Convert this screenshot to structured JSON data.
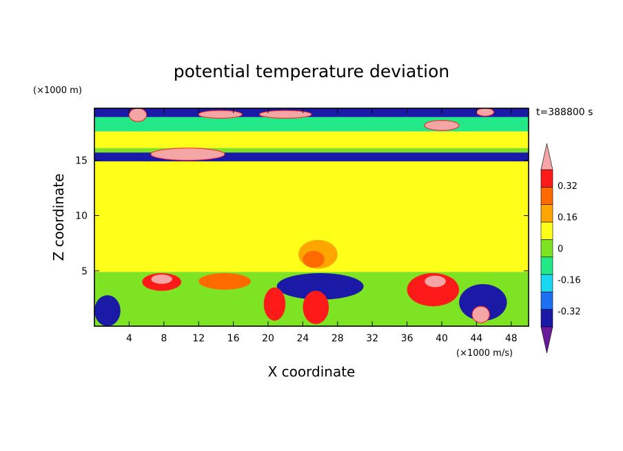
{
  "chart_data": {
    "type": "heatmap",
    "title": "potential temperature deviation",
    "xlabel": "X coordinate",
    "ylabel": "Z coordinate",
    "x_unit": "(×1000 m/s)",
    "y_unit": "(×1000 m)",
    "time_label": "t=388800 s",
    "xlim": [
      0,
      50
    ],
    "ylim": [
      0,
      19.7
    ],
    "x_ticks": [
      4,
      8,
      12,
      16,
      20,
      24,
      28,
      32,
      36,
      40,
      44,
      48
    ],
    "y_ticks": [
      5,
      10,
      15
    ],
    "colorbar": {
      "levels": [
        -0.4,
        -0.32,
        -0.24,
        -0.16,
        -0.08,
        0,
        0.08,
        0.16,
        0.24,
        0.32,
        0.4
      ],
      "labels": [
        "0.32",
        "0.16",
        "0",
        "-0.16",
        "-0.32"
      ],
      "label_values": [
        0.32,
        0.16,
        0,
        -0.16,
        -0.32
      ],
      "colors": [
        "#6a1b9a",
        "#1a1aa6",
        "#1f6ff2",
        "#19d7f0",
        "#23e887",
        "#7de323",
        "#ffff1a",
        "#ffa500",
        "#ff6a00",
        "#ff1a1a",
        "#f4a5a5"
      ],
      "extend": "both"
    },
    "features": [
      {
        "name": "upper-band",
        "kind": "band",
        "z": [
          18.9,
          19.7
        ],
        "value": -0.36
      },
      {
        "name": "upper-band",
        "kind": "band",
        "z": [
          17.6,
          18.9
        ],
        "value": -0.12
      },
      {
        "name": "upper-band",
        "kind": "band",
        "z": [
          16.1,
          17.6
        ],
        "value": 0.04
      },
      {
        "name": "upper-band",
        "kind": "band",
        "z": [
          15.7,
          16.1
        ],
        "value": -0.04
      },
      {
        "name": "tropopause-band",
        "kind": "band",
        "z": [
          14.9,
          15.7
        ],
        "value": -0.36
      },
      {
        "name": "mid-band",
        "kind": "band",
        "z": [
          4.9,
          14.9
        ],
        "value": 0.04
      },
      {
        "name": "boundary-layer",
        "kind": "band",
        "z": [
          0,
          4.9
        ],
        "value": -0.04
      },
      {
        "name": "warm-patch",
        "kind": "patch",
        "x": [
          6.5,
          15
        ],
        "z": [
          15.0,
          16.1
        ],
        "value": 0.45
      },
      {
        "name": "warm-patch",
        "kind": "patch",
        "x": [
          4,
          6
        ],
        "z": [
          18.5,
          19.7
        ],
        "value": 0.45
      },
      {
        "name": "warm-patch",
        "kind": "patch",
        "x": [
          12,
          17
        ],
        "z": [
          18.8,
          19.5
        ],
        "value": 0.45
      },
      {
        "name": "warm-patch",
        "kind": "patch",
        "x": [
          19,
          25
        ],
        "z": [
          18.8,
          19.5
        ],
        "value": 0.45
      },
      {
        "name": "warm-patch",
        "kind": "patch",
        "x": [
          38,
          42
        ],
        "z": [
          17.7,
          18.6
        ],
        "value": 0.45
      },
      {
        "name": "warm-patch",
        "kind": "patch",
        "x": [
          44,
          46
        ],
        "z": [
          19,
          19.7
        ],
        "value": 0.45
      },
      {
        "name": "warm-patch",
        "kind": "patch",
        "x": [
          23.5,
          28
        ],
        "z": [
          5.2,
          7.8
        ],
        "value": 0.12
      },
      {
        "name": "warm-patch",
        "kind": "patch",
        "x": [
          24,
          26.5
        ],
        "z": [
          5.3,
          6.8
        ],
        "value": 0.2
      },
      {
        "name": "cold-patch",
        "kind": "patch",
        "x": [
          0,
          3
        ],
        "z": [
          0,
          2.8
        ],
        "value": -0.4
      },
      {
        "name": "cold-patch",
        "kind": "patch",
        "x": [
          21,
          31
        ],
        "z": [
          2.4,
          4.8
        ],
        "value": -0.36
      },
      {
        "name": "cold-patch",
        "kind": "patch",
        "x": [
          42,
          47.5
        ],
        "z": [
          0.5,
          3.8
        ],
        "value": -0.36
      },
      {
        "name": "warm-patch",
        "kind": "patch",
        "x": [
          5.5,
          10
        ],
        "z": [
          3.2,
          4.8
        ],
        "value": 0.28
      },
      {
        "name": "warm-patch",
        "kind": "patch",
        "x": [
          6.5,
          9
        ],
        "z": [
          3.8,
          4.7
        ],
        "value": 0.45
      },
      {
        "name": "warm-patch",
        "kind": "patch",
        "x": [
          12,
          18
        ],
        "z": [
          3.3,
          4.8
        ],
        "value": 0.2
      },
      {
        "name": "warm-patch",
        "kind": "patch",
        "x": [
          19.5,
          22
        ],
        "z": [
          0.5,
          3.5
        ],
        "value": 0.28
      },
      {
        "name": "warm-patch",
        "kind": "patch",
        "x": [
          24,
          27
        ],
        "z": [
          0.2,
          3.2
        ],
        "value": 0.28
      },
      {
        "name": "warm-patch",
        "kind": "patch",
        "x": [
          36,
          42
        ],
        "z": [
          1.8,
          4.8
        ],
        "value": 0.28
      },
      {
        "name": "warm-patch",
        "kind": "patch",
        "x": [
          38,
          40.5
        ],
        "z": [
          3.5,
          4.6
        ],
        "value": 0.45
      },
      {
        "name": "warm-patch",
        "kind": "patch",
        "x": [
          43.5,
          45.5
        ],
        "z": [
          0.3,
          1.8
        ],
        "value": 0.45
      }
    ]
  }
}
